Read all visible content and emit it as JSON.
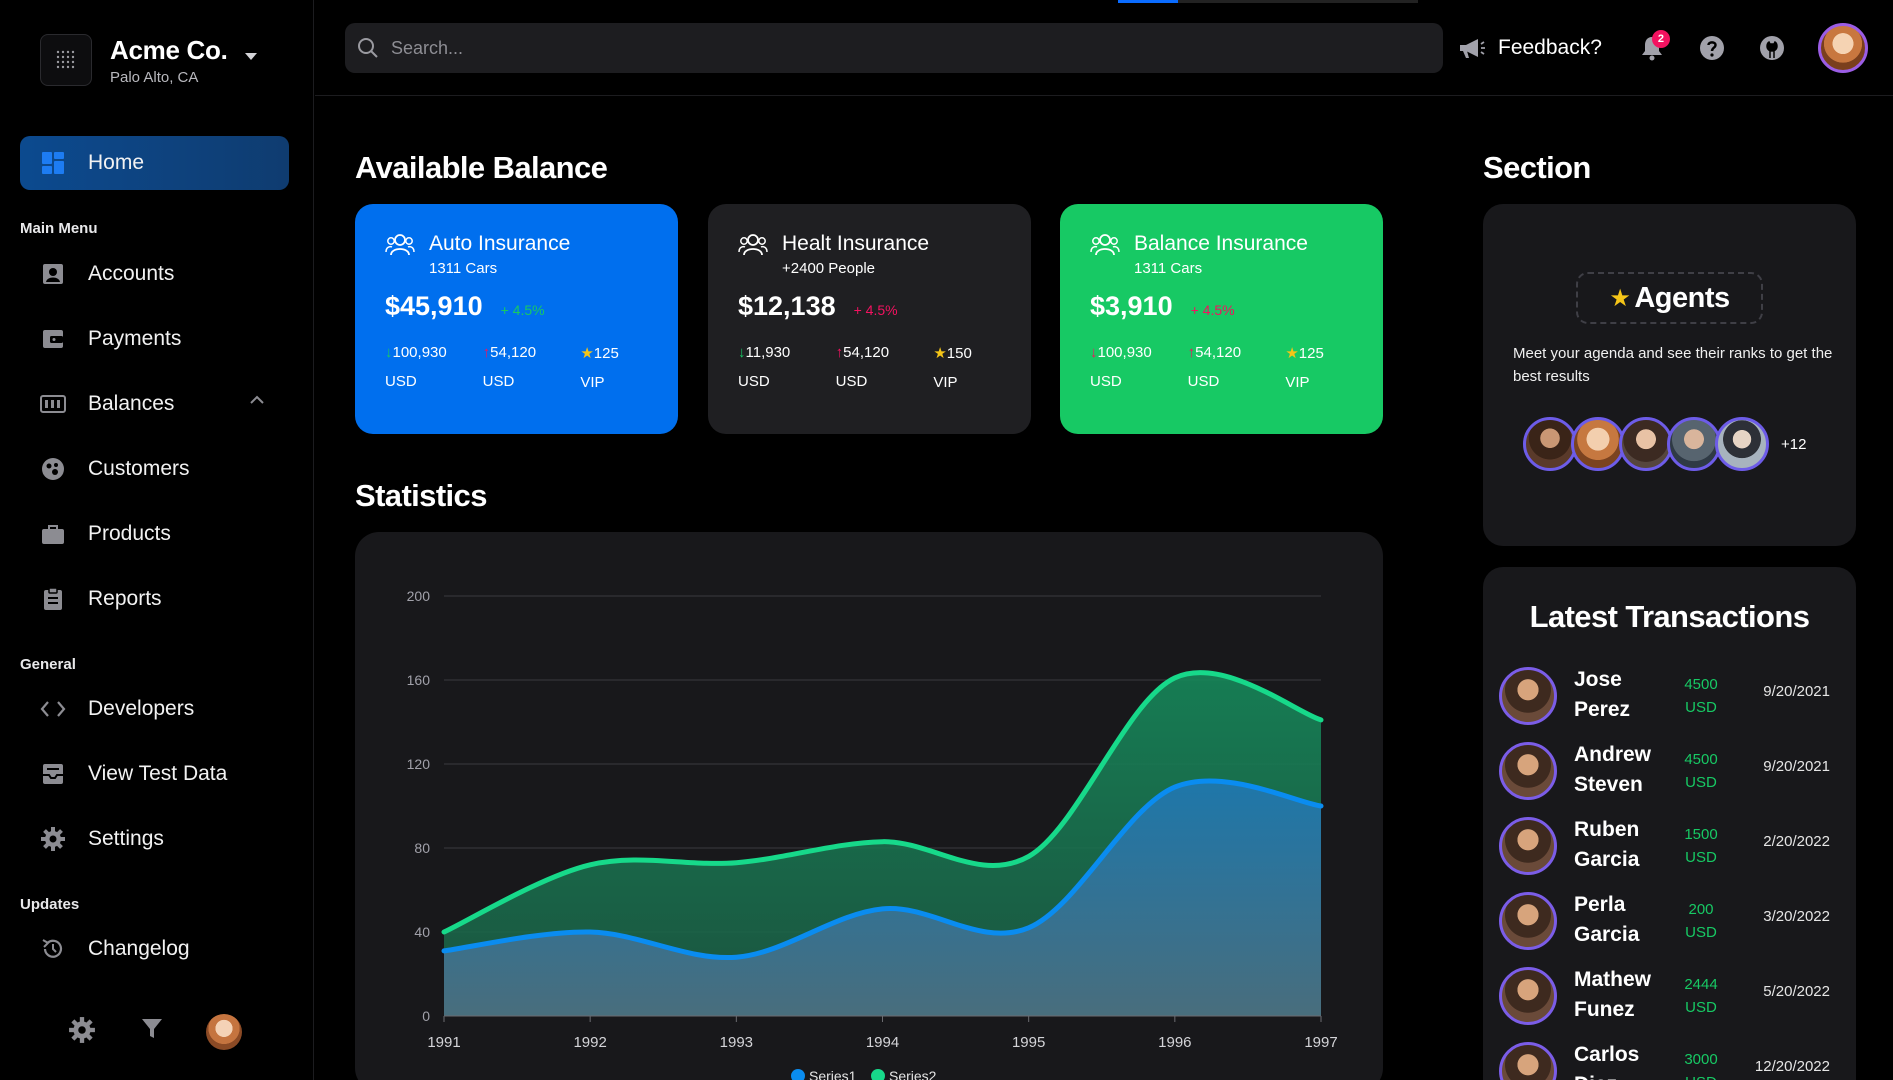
{
  "brand": {
    "name": "Acme Co.",
    "location": "Palo Alto, CA"
  },
  "nav": {
    "home": "Home",
    "section_main": "Main Menu",
    "accounts": "Accounts",
    "payments": "Payments",
    "balances": "Balances",
    "customers": "Customers",
    "products": "Products",
    "reports": "Reports",
    "section_general": "General",
    "developers": "Developers",
    "view_test_data": "View Test Data",
    "settings": "Settings",
    "section_updates": "Updates",
    "changelog": "Changelog"
  },
  "topbar": {
    "search_placeholder": "Search...",
    "feedback": "Feedback?",
    "notifications_count": "2"
  },
  "balance": {
    "heading": "Available Balance",
    "cards": [
      {
        "title": "Auto Insurance",
        "subtitle": "1311 Cars",
        "amount": "$45,910",
        "change": "+ 4.5%",
        "stat1": "100,930",
        "stat1_unit": "USD",
        "stat2": "54,120",
        "stat2_unit": "USD",
        "stat3": "125",
        "stat3_unit": "VIP",
        "bg": "#006fee"
      },
      {
        "title": "Healt Insurance",
        "subtitle": "+2400 People",
        "amount": "$12,138",
        "change": "+ 4.5%",
        "stat1": "11,930",
        "stat1_unit": "USD",
        "stat2": "54,120",
        "stat2_unit": "USD",
        "stat3": "150",
        "stat3_unit": "VIP",
        "bg": "#1f1f22"
      },
      {
        "title": "Balance Insurance",
        "subtitle": "1311 Cars",
        "amount": "$3,910",
        "change": "+ 4.5%",
        "stat1": "100,930",
        "stat1_unit": "USD",
        "stat2": "54,120",
        "stat2_unit": "USD",
        "stat3": "125",
        "stat3_unit": "VIP",
        "bg": "#17c964"
      }
    ]
  },
  "statistics": {
    "heading": "Statistics"
  },
  "chart_data": {
    "type": "area",
    "x": [
      "1991",
      "1992",
      "1993",
      "1994",
      "1995",
      "1996",
      "1997"
    ],
    "series": [
      {
        "name": "Series1",
        "values": [
          31,
          40,
          28,
          51,
          42,
          109,
          100
        ],
        "color": "#0a8cf0"
      },
      {
        "name": "Series2",
        "values": [
          40,
          72,
          73,
          83,
          76,
          161,
          141
        ],
        "color": "#17d98a"
      }
    ],
    "ylim": [
      0,
      200
    ],
    "yticks": [
      0,
      40,
      80,
      120,
      160,
      200
    ],
    "grid": true,
    "legend": "bottom"
  },
  "section": {
    "heading": "Section",
    "agents_label": "Agents",
    "description": "Meet your agenda and see their ranks to get the best results",
    "more": "+12"
  },
  "transactions": {
    "heading": "Latest Transactions",
    "rows": [
      {
        "first": "Jose",
        "last": "Perez",
        "amount": "4500",
        "currency": "USD",
        "date": "9/20/2021"
      },
      {
        "first": "Andrew",
        "last": "Steven",
        "amount": "4500",
        "currency": "USD",
        "date": "9/20/2021"
      },
      {
        "first": "Ruben",
        "last": "Garcia",
        "amount": "1500",
        "currency": "USD",
        "date": "2/20/2022"
      },
      {
        "first": "Perla",
        "last": "Garcia",
        "amount": "200",
        "currency": "USD",
        "date": "3/20/2022"
      },
      {
        "first": "Mathew",
        "last": "Funez",
        "amount": "2444",
        "currency": "USD",
        "date": "5/20/2022"
      },
      {
        "first": "Carlos",
        "last": "Diaz",
        "amount": "3000",
        "currency": "USD",
        "date": "12/20/2022"
      }
    ]
  }
}
